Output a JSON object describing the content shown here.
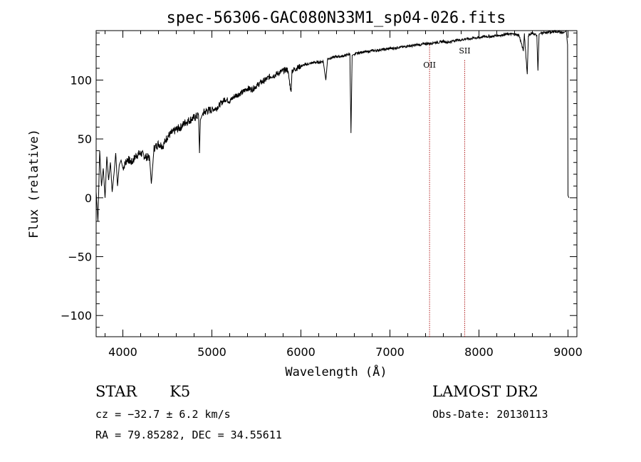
{
  "chart_data": {
    "type": "line",
    "title": "spec-56306-GAC080N33M1_sp04-026.fits",
    "xlabel": "Wavelength (Å)",
    "ylabel": "Flux (relative)",
    "xlim": [
      3700,
      9100
    ],
    "ylim": [
      -118,
      142
    ],
    "xticks": [
      4000,
      5000,
      6000,
      7000,
      8000,
      9000
    ],
    "yticks": [
      -100,
      -50,
      0,
      50,
      100
    ],
    "xtick_labels": [
      "4000",
      "5000",
      "6000",
      "7000",
      "8000",
      "9000"
    ],
    "ytick_labels": [
      "−100",
      "−50",
      "0",
      "50",
      "100"
    ],
    "series": [
      {
        "color": "#000000",
        "x": [
          3700,
          3720,
          3740,
          3760,
          3780,
          3800,
          3820,
          3840,
          3860,
          3880,
          3900,
          3920,
          3940,
          3960,
          3980,
          4000,
          4050,
          4100,
          4150,
          4200,
          4250,
          4300,
          4320,
          4350,
          4400,
          4450,
          4500,
          4550,
          4600,
          4650,
          4700,
          4750,
          4800,
          4850,
          4861,
          4870,
          4900,
          4950,
          5000,
          5050,
          5100,
          5150,
          5200,
          5250,
          5300,
          5350,
          5400,
          5450,
          5500,
          5550,
          5600,
          5650,
          5700,
          5750,
          5800,
          5850,
          5890,
          5900,
          5950,
          6000,
          6050,
          6100,
          6150,
          6200,
          6250,
          6280,
          6300,
          6350,
          6400,
          6450,
          6500,
          6550,
          6562,
          6575,
          6600,
          6650,
          6700,
          6750,
          6800,
          6850,
          6900,
          6950,
          7000,
          7050,
          7100,
          7150,
          7200,
          7250,
          7300,
          7350,
          7400,
          7450,
          7500,
          7550,
          7600,
          7650,
          7700,
          7750,
          7800,
          7850,
          7900,
          7950,
          8000,
          8050,
          8100,
          8150,
          8200,
          8250,
          8300,
          8350,
          8400,
          8450,
          8498,
          8510,
          8542,
          8555,
          8600,
          8650,
          8662,
          8675,
          8700,
          8750,
          8800,
          8850,
          8900,
          8950,
          8980,
          8995,
          9000,
          9010
        ],
        "y": [
          5,
          -20,
          40,
          10,
          25,
          0,
          35,
          15,
          30,
          5,
          20,
          38,
          10,
          28,
          32,
          25,
          33,
          30,
          36,
          38,
          35,
          34,
          12,
          42,
          46,
          44,
          52,
          55,
          58,
          60,
          64,
          66,
          68,
          70,
          38,
          66,
          72,
          74,
          75,
          76,
          80,
          84,
          82,
          86,
          88,
          90,
          93,
          92,
          95,
          98,
          100,
          103,
          104,
          106,
          108,
          109,
          90,
          108,
          110,
          112,
          113,
          114,
          115,
          115,
          116,
          100,
          118,
          119,
          120,
          120,
          121,
          122,
          55,
          121,
          122,
          123,
          124,
          124,
          125,
          125,
          126,
          126,
          127,
          127,
          128,
          128,
          129,
          129,
          130,
          130,
          131,
          131,
          132,
          132,
          133,
          132,
          133,
          134,
          134,
          135,
          135,
          136,
          136,
          137,
          137,
          137,
          138,
          138,
          139,
          139,
          139,
          138,
          125,
          139,
          105,
          138,
          140,
          138,
          108,
          139,
          140,
          140,
          141,
          141,
          141,
          140,
          142,
          130,
          2,
          0
        ]
      }
    ],
    "annotations": [
      {
        "text": "OII",
        "x": 7445
      },
      {
        "text": "SII",
        "x": 7840
      }
    ],
    "marker_color": "#b22222"
  },
  "info": {
    "object_type": "STAR",
    "subclass": "K5",
    "redshift": "cz = −32.7 ± 6.2 km/s",
    "coordinates": "RA =  79.85282, DEC =  34.55611",
    "survey": "LAMOST DR2",
    "obs_date": "Obs-Date: 20130113"
  }
}
